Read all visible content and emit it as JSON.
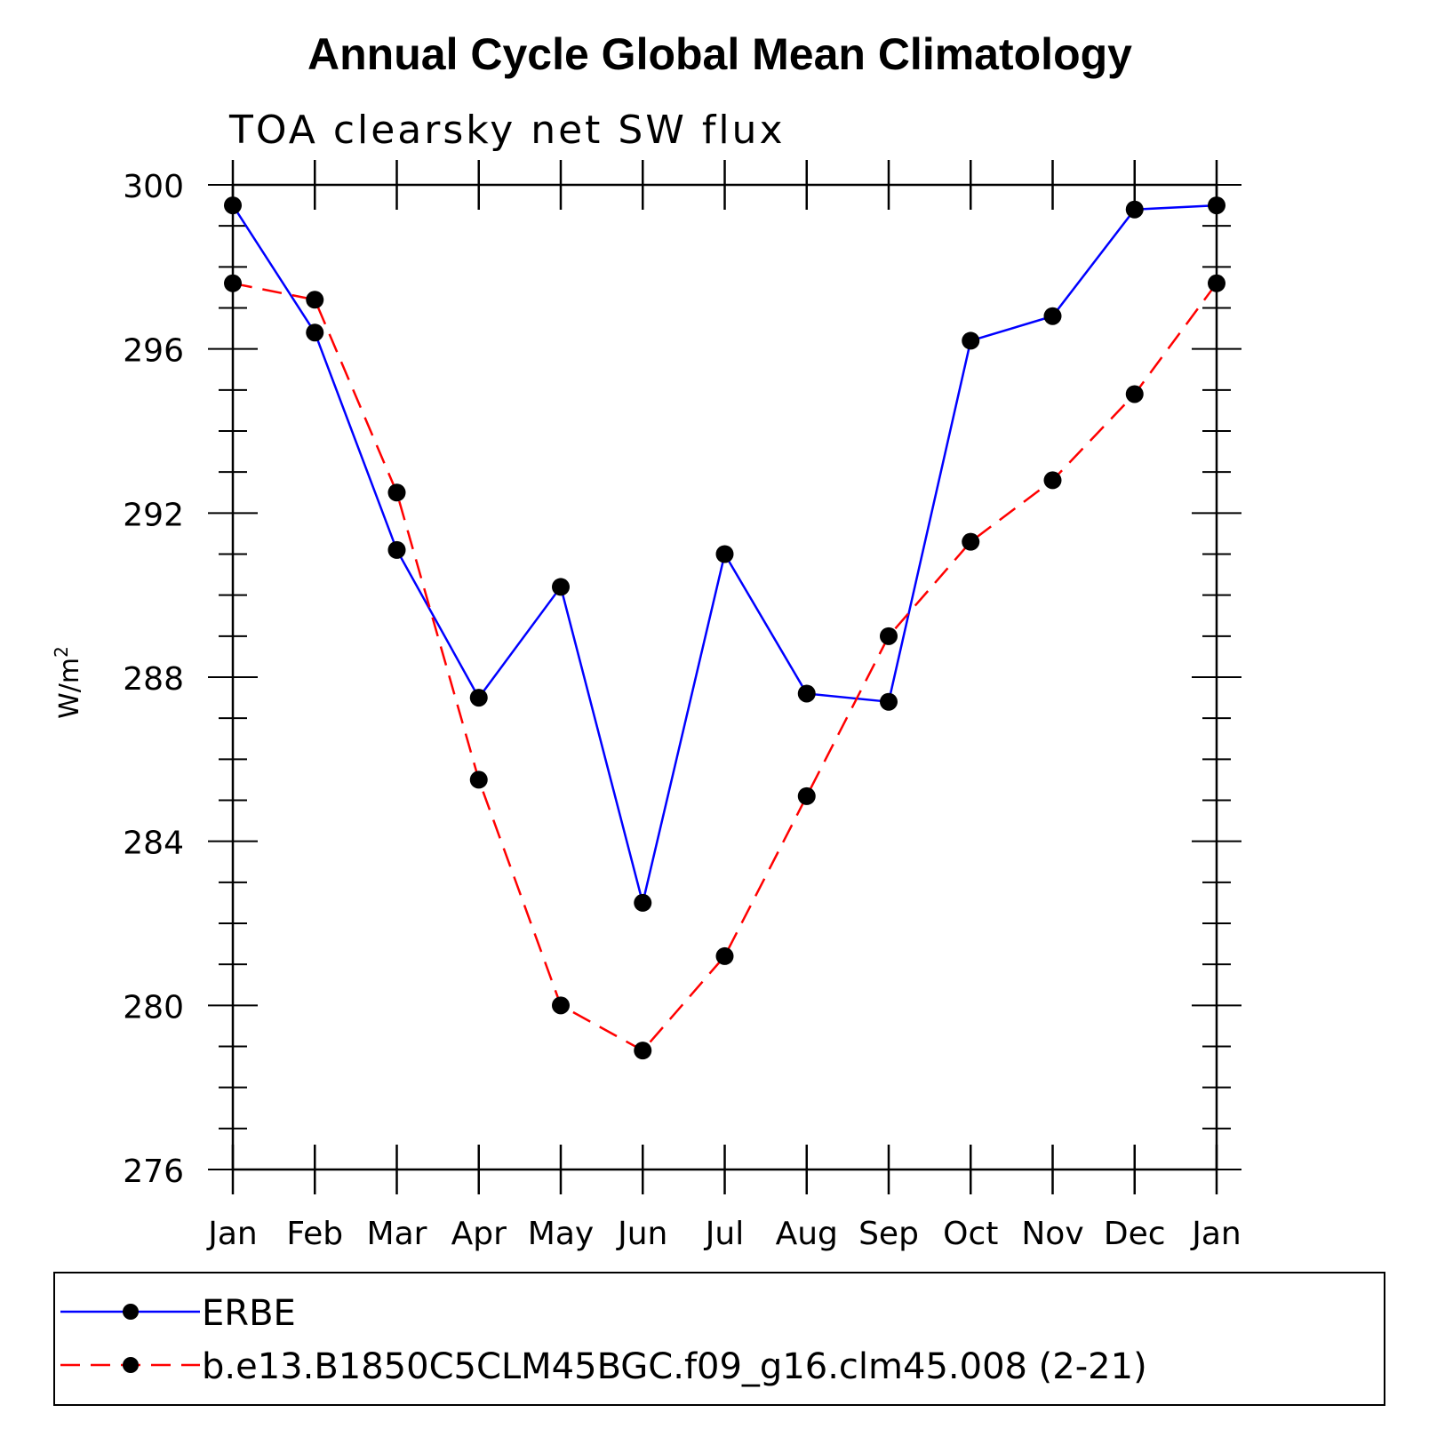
{
  "chart_data": {
    "type": "line",
    "title": "Annual Cycle Global Mean Climatology",
    "subtitle": "TOA clearsky net SW flux",
    "xlabel": "",
    "ylabel": "W/m",
    "ylabel_superscript": "2",
    "ylim": [
      276,
      300
    ],
    "yticks": [
      "276",
      "280",
      "284",
      "288",
      "292",
      "296",
      "300"
    ],
    "yticks_values": [
      276,
      280,
      284,
      288,
      292,
      296,
      300
    ],
    "categories": [
      "Jan",
      "Feb",
      "Mar",
      "Apr",
      "May",
      "Jun",
      "Jul",
      "Aug",
      "Sep",
      "Oct",
      "Nov",
      "Dec",
      "Jan"
    ],
    "grid": false,
    "legend_position": "bottom",
    "series": [
      {
        "name": "ERBE",
        "color": "#0000ff",
        "line_style": "solid",
        "marker": "circle",
        "values": [
          299.5,
          296.4,
          291.1,
          287.5,
          290.2,
          282.5,
          291.0,
          287.6,
          287.4,
          296.2,
          296.8,
          299.4,
          299.5
        ]
      },
      {
        "name": "b.e13.B1850C5CLM45BGC.f09_g16.clm45.008 (2-21)",
        "color": "#ff0000",
        "line_style": "dashed",
        "marker": "circle",
        "values": [
          297.6,
          297.2,
          292.5,
          285.5,
          280.0,
          278.9,
          281.2,
          285.1,
          289.0,
          291.3,
          292.8,
          294.9,
          297.6
        ]
      }
    ]
  }
}
